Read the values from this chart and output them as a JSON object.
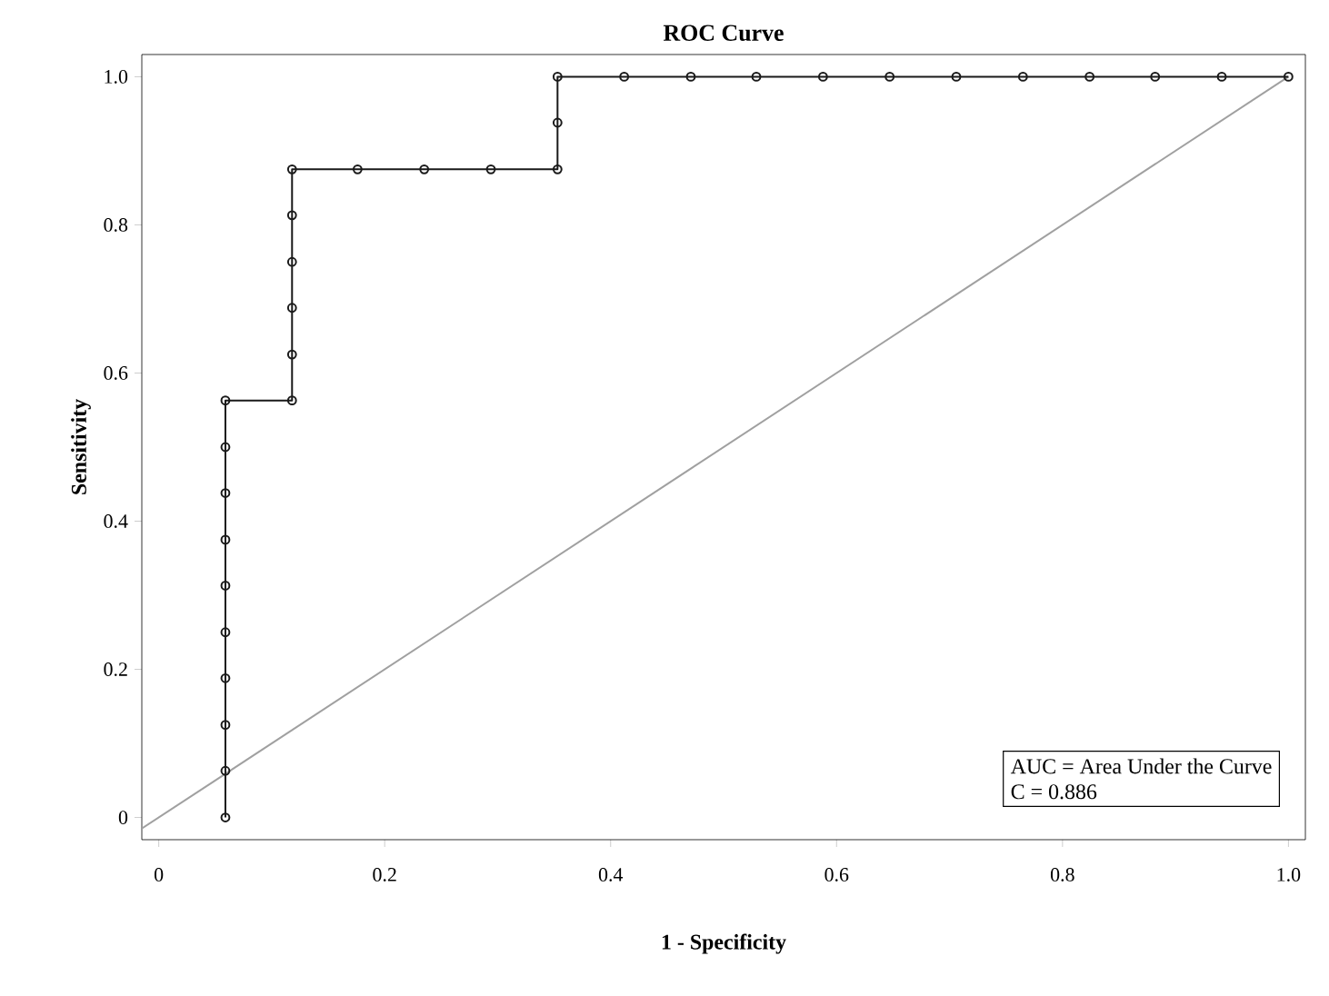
{
  "chart_data": {
    "type": "line",
    "title": "ROC Curve",
    "xlabel": "1 - Specificity",
    "ylabel": "Sensitivity",
    "xlim": [
      -0.015,
      1.015
    ],
    "ylim": [
      -0.03,
      1.03
    ],
    "xticks": [
      {
        "value": 0,
        "label": "0"
      },
      0.2,
      0.4,
      0.6,
      0.8,
      {
        "value": 1,
        "label": "1.0"
      }
    ],
    "yticks": [
      {
        "value": 0,
        "label": "0"
      },
      0.2,
      0.4,
      0.6,
      0.8,
      {
        "value": 1,
        "label": "1.0"
      }
    ],
    "grid": false,
    "series": [
      {
        "color": "#a0a0a0",
        "marker": "none",
        "x": [
          -0.015,
          1.0
        ],
        "values": [
          -0.015,
          1.0
        ]
      },
      {
        "color": "#1a1a1a",
        "marker": "circle",
        "x": [
          0.059,
          0.059,
          0.059,
          0.059,
          0.059,
          0.059,
          0.059,
          0.059,
          0.059,
          0.059,
          0.118,
          0.118,
          0.118,
          0.118,
          0.118,
          0.118,
          0.176,
          0.235,
          0.294,
          0.353,
          0.353,
          0.353,
          0.412,
          0.471,
          0.529,
          0.588,
          0.647,
          0.706,
          0.765,
          0.824,
          0.882,
          0.941,
          1.0
        ],
        "values": [
          0,
          0.063,
          0.125,
          0.188,
          0.25,
          0.313,
          0.375,
          0.438,
          0.5,
          0.563,
          0.563,
          0.625,
          0.688,
          0.75,
          0.813,
          0.875,
          0.875,
          0.875,
          0.875,
          0.875,
          0.938,
          1.0,
          1.0,
          1.0,
          1.0,
          1.0,
          1.0,
          1.0,
          1.0,
          1.0,
          1.0,
          1.0,
          1.0
        ]
      }
    ],
    "annotations": [
      "AUC = Area Under the Curve",
      "C = 0.886"
    ]
  }
}
